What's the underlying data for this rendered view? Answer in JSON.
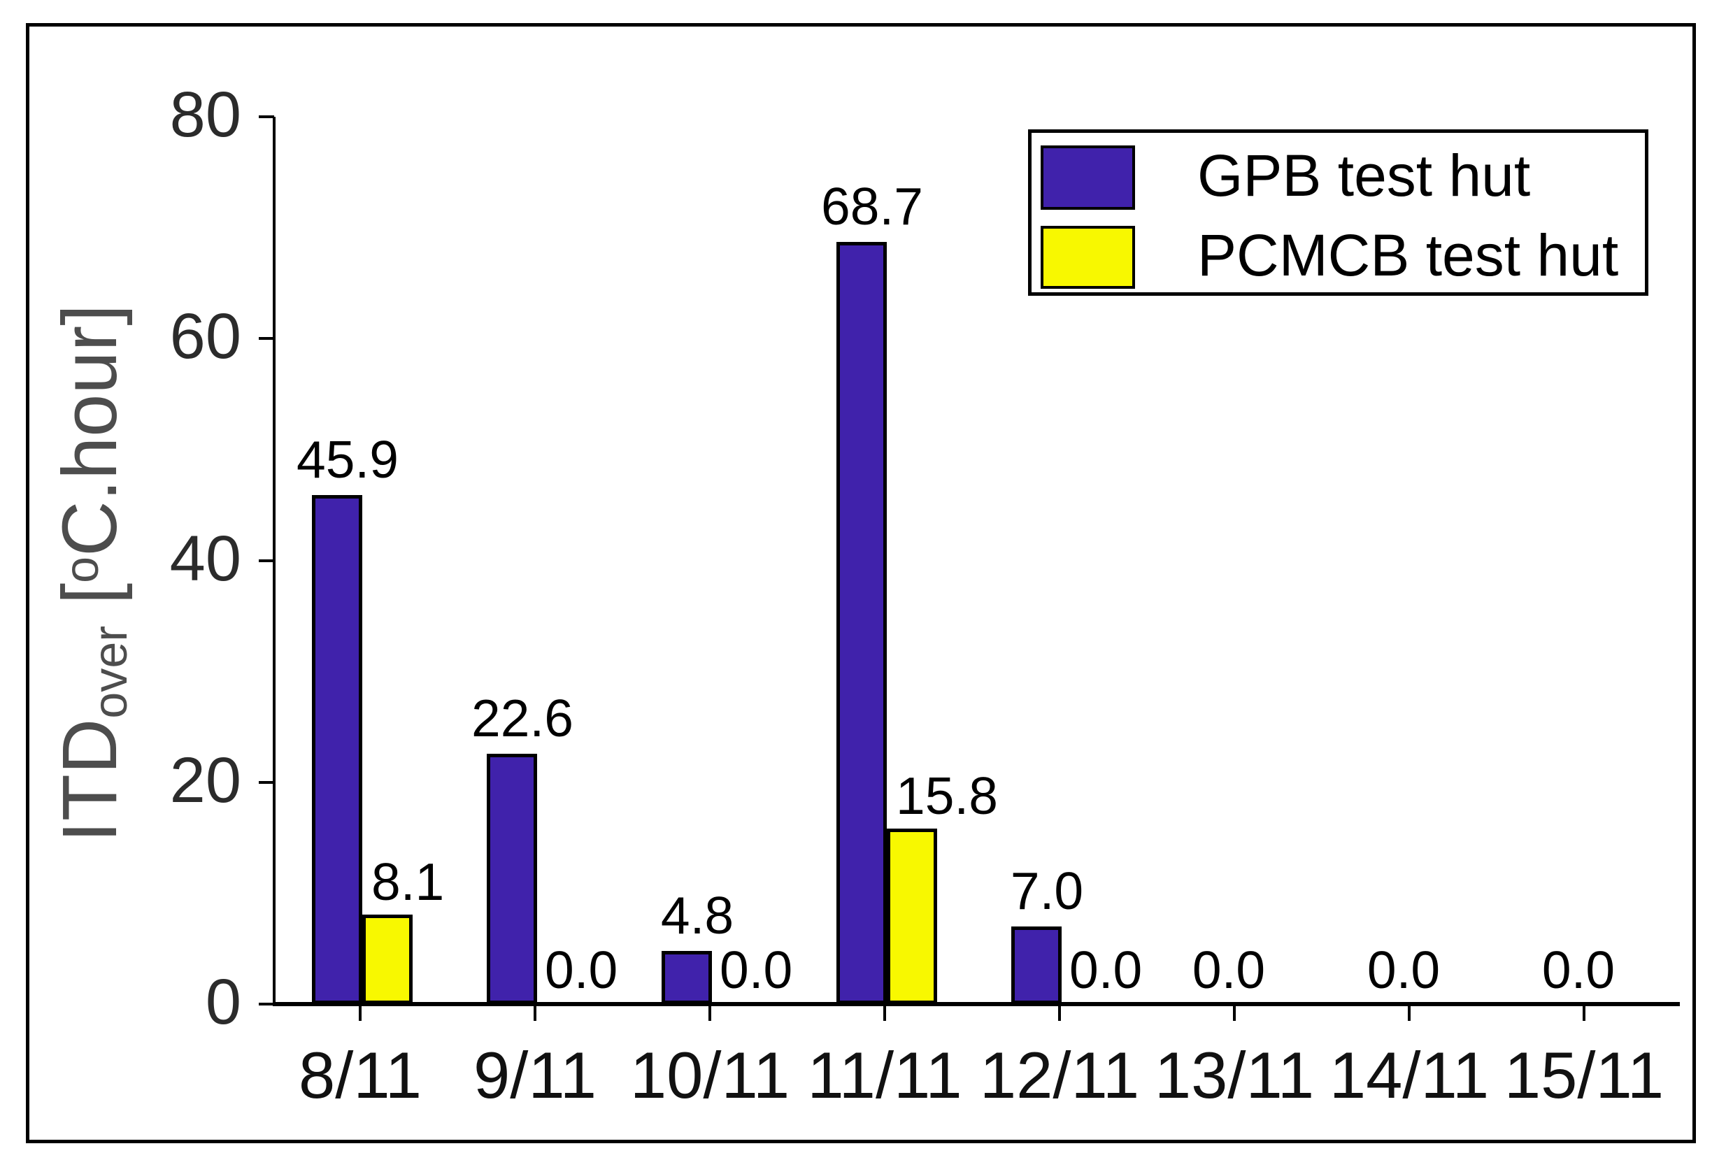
{
  "figure": {
    "background": "#ffffff",
    "border_color": "#000000"
  },
  "chart_data": {
    "type": "bar",
    "title": "",
    "categories": [
      "8/11",
      "9/11",
      "10/11",
      "11/11",
      "12/11",
      "13/11",
      "14/11",
      "15/11"
    ],
    "series": [
      {
        "name": "GPB test hut",
        "color": "#4022AB",
        "values": [
          45.9,
          22.6,
          4.8,
          68.7,
          7.0,
          0.0,
          0.0,
          0.0
        ]
      },
      {
        "name": "PCMCB test hut",
        "color": "#F8F800",
        "values": [
          8.1,
          0.0,
          0.0,
          15.8,
          0.0,
          0.0,
          0.0,
          0.0
        ]
      }
    ],
    "xlabel": "",
    "ylabel": "ITD_over [oC.hour]",
    "ylabel_parts": {
      "base": "ITD",
      "sub": "over",
      "mid": " [",
      "sup": "o",
      "rest": "C.hour]"
    },
    "ylim": [
      0,
      80
    ],
    "yticks": [
      0,
      20,
      40,
      60,
      80
    ],
    "grid": false,
    "bar_value_labels": true,
    "value_label_decimals": 1,
    "legend_position": "top-right"
  }
}
